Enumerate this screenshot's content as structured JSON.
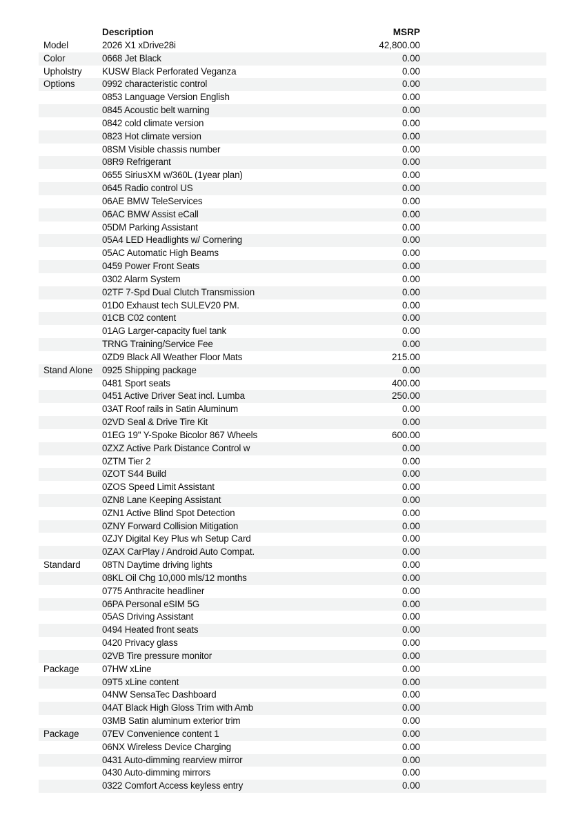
{
  "header": {
    "description": "Description",
    "msrp": "MSRP"
  },
  "colors": {
    "stripe": "#f2f3f3",
    "text": "#111111"
  },
  "rows": [
    {
      "category": "Model",
      "description": "2026 X1 xDrive28i",
      "msrp": "42,800.00"
    },
    {
      "category": "Color",
      "description": "0668 Jet Black",
      "msrp": "0.00"
    },
    {
      "category": "Upholstry",
      "description": "KUSW Black Perforated Veganza",
      "msrp": "0.00"
    },
    {
      "category": "Options",
      "description": "0992 characteristic control",
      "msrp": "0.00"
    },
    {
      "category": "",
      "description": "0853 Language Version English",
      "msrp": "0.00"
    },
    {
      "category": "",
      "description": "0845 Acoustic belt warning",
      "msrp": "0.00"
    },
    {
      "category": "",
      "description": "0842 cold climate version",
      "msrp": "0.00"
    },
    {
      "category": "",
      "description": "0823 Hot climate version",
      "msrp": "0.00"
    },
    {
      "category": "",
      "description": "08SM Visible chassis number",
      "msrp": "0.00"
    },
    {
      "category": "",
      "description": "08R9 Refrigerant",
      "msrp": "0.00"
    },
    {
      "category": "",
      "description": "0655 SiriusXM w/360L (1year plan)",
      "msrp": "0.00"
    },
    {
      "category": "",
      "description": "0645 Radio control US",
      "msrp": "0.00"
    },
    {
      "category": "",
      "description": "06AE BMW TeleServices",
      "msrp": "0.00"
    },
    {
      "category": "",
      "description": "06AC BMW Assist eCall",
      "msrp": "0.00"
    },
    {
      "category": "",
      "description": "05DM Parking Assistant",
      "msrp": "0.00"
    },
    {
      "category": "",
      "description": "05A4 LED Headlights w/ Cornering",
      "msrp": "0.00"
    },
    {
      "category": "",
      "description": "05AC Automatic High Beams",
      "msrp": "0.00"
    },
    {
      "category": "",
      "description": "0459 Power Front Seats",
      "msrp": "0.00"
    },
    {
      "category": "",
      "description": "0302 Alarm System",
      "msrp": "0.00"
    },
    {
      "category": "",
      "description": "02TF 7-Spd Dual Clutch Transmission",
      "msrp": "0.00"
    },
    {
      "category": "",
      "description": "01D0 Exhaust tech SULEV20 PM.",
      "msrp": "0.00"
    },
    {
      "category": "",
      "description": "01CB C02 content",
      "msrp": "0.00"
    },
    {
      "category": "",
      "description": "01AG Larger-capacity fuel tank",
      "msrp": "0.00"
    },
    {
      "category": "",
      "description": "TRNG Training/Service Fee",
      "msrp": "0.00"
    },
    {
      "category": "",
      "description": "0ZD9 Black All Weather Floor Mats",
      "msrp": "215.00"
    },
    {
      "category": "Stand Alone",
      "description": "0925 Shipping package",
      "msrp": "0.00"
    },
    {
      "category": "",
      "description": "0481 Sport seats",
      "msrp": "400.00"
    },
    {
      "category": "",
      "description": "0451 Active Driver Seat incl. Lumba",
      "msrp": "250.00"
    },
    {
      "category": "",
      "description": "03AT Roof rails in Satin Aluminum",
      "msrp": "0.00"
    },
    {
      "category": "",
      "description": "02VD Seal & Drive Tire Kit",
      "msrp": "0.00"
    },
    {
      "category": "",
      "description": "01EG 19\" Y-Spoke Bicolor 867 Wheels",
      "msrp": "600.00"
    },
    {
      "category": "",
      "description": "0ZXZ Active Park Distance Control w",
      "msrp": "0.00"
    },
    {
      "category": "",
      "description": "0ZTM Tier 2",
      "msrp": "0.00"
    },
    {
      "category": "",
      "description": "0ZOT S44 Build",
      "msrp": "0.00"
    },
    {
      "category": "",
      "description": "0ZOS Speed Limit Assistant",
      "msrp": "0.00"
    },
    {
      "category": "",
      "description": "0ZN8 Lane Keeping Assistant",
      "msrp": "0.00"
    },
    {
      "category": "",
      "description": "0ZN1 Active Blind Spot Detection",
      "msrp": "0.00"
    },
    {
      "category": "",
      "description": "0ZNY Forward Collision Mitigation",
      "msrp": "0.00"
    },
    {
      "category": "",
      "description": "0ZJY Digital Key Plus wh Setup Card",
      "msrp": "0.00"
    },
    {
      "category": "",
      "description": "0ZAX CarPlay / Android Auto Compat.",
      "msrp": "0.00"
    },
    {
      "category": "Standard",
      "description": "08TN Daytime driving lights",
      "msrp": "0.00"
    },
    {
      "category": "",
      "description": "08KL Oil Chg 10,000 mls/12 months",
      "msrp": "0.00"
    },
    {
      "category": "",
      "description": "0775 Anthracite headliner",
      "msrp": "0.00"
    },
    {
      "category": "",
      "description": "06PA Personal eSIM 5G",
      "msrp": "0.00"
    },
    {
      "category": "",
      "description": "05AS Driving Assistant",
      "msrp": "0.00"
    },
    {
      "category": "",
      "description": "0494 Heated front seats",
      "msrp": "0.00"
    },
    {
      "category": "",
      "description": "0420 Privacy glass",
      "msrp": "0.00"
    },
    {
      "category": "",
      "description": "02VB Tire pressure monitor",
      "msrp": "0.00"
    },
    {
      "category": "Package",
      "description": "07HW xLine",
      "msrp": "0.00"
    },
    {
      "category": "",
      "description": "09T5 xLine content",
      "msrp": "0.00"
    },
    {
      "category": "",
      "description": "04NW SensaTec Dashboard",
      "msrp": "0.00"
    },
    {
      "category": "",
      "description": "04AT Black High Gloss Trim with Amb",
      "msrp": "0.00"
    },
    {
      "category": "",
      "description": "03MB Satin aluminum exterior trim",
      "msrp": "0.00"
    },
    {
      "category": "Package",
      "description": "07EV Convenience content 1",
      "msrp": "0.00"
    },
    {
      "category": "",
      "description": "06NX Wireless Device Charging",
      "msrp": "0.00"
    },
    {
      "category": "",
      "description": "0431 Auto-dimming rearview mirror",
      "msrp": "0.00"
    },
    {
      "category": "",
      "description": "0430 Auto-dimming mirrors",
      "msrp": "0.00"
    },
    {
      "category": "",
      "description": "0322 Comfort Access keyless entry",
      "msrp": "0.00"
    }
  ]
}
